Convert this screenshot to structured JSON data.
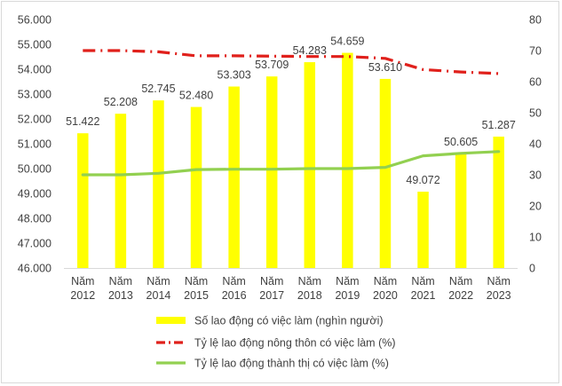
{
  "chart_data": {
    "type": "bar",
    "categories": [
      [
        "Năm",
        "2012"
      ],
      [
        "Năm",
        "2013"
      ],
      [
        "Năm",
        "2014"
      ],
      [
        "Năm",
        "2015"
      ],
      [
        "Năm",
        "2016"
      ],
      [
        "Năm",
        "2017"
      ],
      [
        "Năm",
        "2018"
      ],
      [
        "Năm",
        "2019"
      ],
      [
        "Năm",
        "2020"
      ],
      [
        "Năm",
        "2021"
      ],
      [
        "Năm",
        "2022"
      ],
      [
        "Năm",
        "2023"
      ]
    ],
    "bar_series": {
      "name": "Số lao động có việc làm (nghìn người)",
      "color": "#ffff00",
      "axis": "left",
      "values": [
        51422,
        52208,
        52745,
        52480,
        53303,
        53709,
        54283,
        54659,
        53610,
        49072,
        50605,
        51287
      ],
      "labels": [
        "51.422",
        "52.208",
        "52.745",
        "52.480",
        "53.303",
        "53.709",
        "54.283",
        "54.659",
        "53.610",
        "49.072",
        "50.605",
        "51.287"
      ]
    },
    "line_series": [
      {
        "name": "Tỷ lệ lao động nông thôn có việc làm (%)",
        "color": "#e0201b",
        "style": "dash-dot",
        "axis": "right",
        "values": [
          70,
          70,
          69.6,
          68.3,
          68.3,
          68.2,
          68.1,
          68.1,
          67.5,
          63.9,
          63.1,
          62.6
        ]
      },
      {
        "name": "Tỷ lệ lao động thành thị có việc làm (%)",
        "color": "#92d050",
        "style": "solid",
        "axis": "right",
        "values": [
          30,
          30,
          30.5,
          31.7,
          31.8,
          31.8,
          32,
          32,
          32.4,
          36.1,
          36.9,
          37.5
        ]
      }
    ],
    "y_left": {
      "range": [
        46000,
        56000
      ],
      "ticks": [
        46000,
        47000,
        48000,
        49000,
        50000,
        51000,
        52000,
        53000,
        54000,
        55000,
        56000
      ],
      "tick_labels": [
        "46.000",
        "47.000",
        "48.000",
        "49.000",
        "50.000",
        "51.000",
        "52.000",
        "53.000",
        "54.000",
        "55.000",
        "56.000"
      ]
    },
    "y_right": {
      "range": [
        0,
        80
      ],
      "ticks": [
        0,
        10,
        20,
        30,
        40,
        50,
        60,
        70,
        80
      ],
      "tick_labels": [
        "0",
        "10",
        "20",
        "30",
        "40",
        "50",
        "60",
        "70",
        "80"
      ]
    },
    "grid": false,
    "legend_position": "bottom"
  }
}
